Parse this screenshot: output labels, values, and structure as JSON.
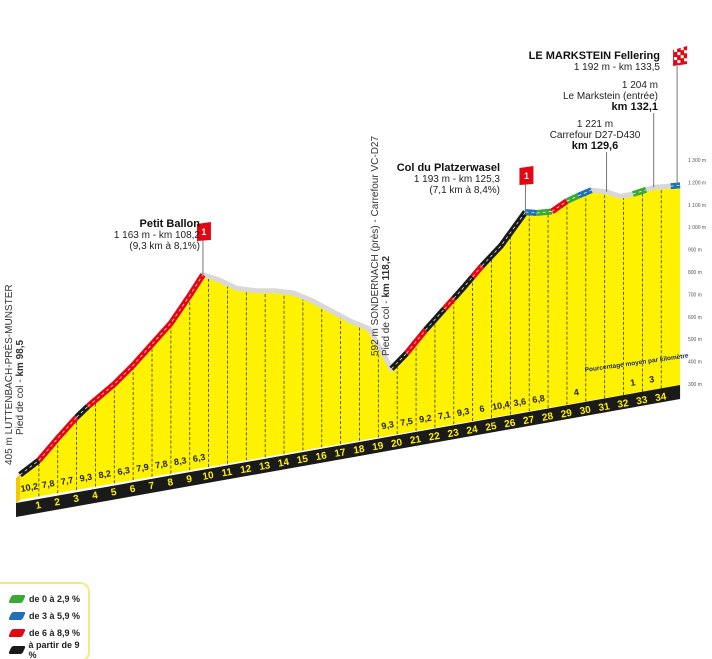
{
  "chart_data": {
    "type": "area",
    "title": "",
    "y_axis_labels": [
      "1 300 m",
      "1 200 m",
      "1 100 m",
      "1 000 m",
      "900 m",
      "800 m",
      "700 m",
      "600 m",
      "500 m",
      "400 m",
      "300 m"
    ],
    "y_axis_values": [
      1300,
      1200,
      1100,
      1000,
      900,
      800,
      700,
      600,
      500,
      400,
      300
    ],
    "km_markers": [
      1,
      2,
      3,
      4,
      5,
      6,
      7,
      8,
      9,
      10,
      11,
      12,
      13,
      14,
      15,
      16,
      17,
      18,
      19,
      20,
      21,
      22,
      23,
      24,
      25,
      26,
      27,
      28,
      29,
      30,
      31,
      32,
      33,
      34
    ],
    "profile": [
      [
        0,
        405
      ],
      [
        1,
        455
      ],
      [
        2,
        540
      ],
      [
        3,
        620
      ],
      [
        3.6,
        660
      ],
      [
        4.3,
        700
      ],
      [
        5,
        740
      ],
      [
        6,
        810
      ],
      [
        7,
        890
      ],
      [
        8,
        970
      ],
      [
        9,
        1080
      ],
      [
        9.7,
        1163
      ],
      [
        10.5,
        1130
      ],
      [
        11.5,
        1075
      ],
      [
        12.5,
        1050
      ],
      [
        13.5,
        1035
      ],
      [
        14.5,
        1010
      ],
      [
        15.5,
        960
      ],
      [
        16.5,
        900
      ],
      [
        17.5,
        840
      ],
      [
        18.5,
        790
      ],
      [
        19.7,
        592
      ],
      [
        20.5,
        650
      ],
      [
        21.5,
        740
      ],
      [
        22.5,
        820
      ],
      [
        23.5,
        900
      ],
      [
        24.5,
        985
      ],
      [
        25.5,
        1060
      ],
      [
        26.8,
        1193
      ],
      [
        27.4,
        1180
      ],
      [
        28.2,
        1175
      ],
      [
        29,
        1210
      ],
      [
        29.6,
        1225
      ],
      [
        30.3,
        1240
      ],
      [
        31.1,
        1221
      ],
      [
        31.8,
        1190
      ],
      [
        32.5,
        1190
      ],
      [
        33.6,
        1204
      ],
      [
        35,
        1192
      ]
    ],
    "segments": [
      {
        "from": 0,
        "to": 1,
        "color": "black"
      },
      {
        "from": 1,
        "to": 3,
        "color": "red"
      },
      {
        "from": 3,
        "to": 3.6,
        "color": "black"
      },
      {
        "from": 3.6,
        "to": 9.7,
        "color": "red"
      },
      {
        "from": 19.7,
        "to": 20.5,
        "color": "black"
      },
      {
        "from": 20.5,
        "to": 21.5,
        "color": "red"
      },
      {
        "from": 21.5,
        "to": 22.5,
        "color": "black"
      },
      {
        "from": 22.5,
        "to": 23,
        "color": "red"
      },
      {
        "from": 23,
        "to": 24,
        "color": "black"
      },
      {
        "from": 24,
        "to": 24.5,
        "color": "red"
      },
      {
        "from": 24.5,
        "to": 26.8,
        "color": "black"
      },
      {
        "from": 26.8,
        "to": 27.4,
        "color": "blue"
      },
      {
        "from": 27.4,
        "to": 28.2,
        "color": "green"
      },
      {
        "from": 28.2,
        "to": 29,
        "color": "red"
      },
      {
        "from": 29,
        "to": 29.6,
        "color": "green"
      },
      {
        "from": 29.6,
        "to": 30.3,
        "color": "blue"
      },
      {
        "from": 32.5,
        "to": 33.2,
        "color": "green"
      },
      {
        "from": 34.5,
        "to": 35,
        "color": "blue"
      }
    ],
    "km_gradients": [
      "10,2",
      "7,8",
      "7,7",
      "9,3",
      "8,2",
      "6,3",
      "7,9",
      "7,8",
      "8,3",
      "6,3",
      "",
      "",
      "",
      "",
      "",
      "",
      "",
      "",
      "",
      "9,3",
      "7,5",
      "9,2",
      "7,1",
      "9,3",
      "6",
      "10,4",
      "3,6",
      "6,8",
      "",
      "4",
      "",
      "",
      "1",
      "3"
    ],
    "annotation": "Pourcentage moyen par kilomètre",
    "colors": {
      "yellow": "#fff200",
      "black": "#1a1a1a",
      "red": "#e30613",
      "blue": "#1d71b8",
      "green": "#3aaa35",
      "flag": "#e30613"
    }
  },
  "places": {
    "start": {
      "line1": "405 m LUTTENBACH-PRÈS-MUNSTER",
      "line2a": "Pied de col - ",
      "line2b": "km 98,5"
    },
    "petit_ballon": {
      "name": "Petit Ballon",
      "info": "1 163 m - km 108,2",
      "detail": "(9,3 km à 8,1%)",
      "category": "1"
    },
    "sondernach": {
      "line1": "592 m SONDERNACH (près) - Carrefour VC-D27",
      "line2a": "Pied de col - ",
      "line2b": "km 118,2"
    },
    "platzerwasel": {
      "name": "Col du Platzerwasel",
      "info": "1 193 m - km 125,3",
      "detail": "(7,1 km à 8,4%)",
      "category": "1"
    },
    "carrefour": {
      "alt": "1 221 m",
      "name": "Carrefour D27-D430",
      "km": "km 129,6"
    },
    "markstein_entree": {
      "alt": "1 204 m",
      "name": "Le Markstein (entrée)",
      "km": "km 132,1"
    },
    "finish": {
      "name": "LE MARKSTEIN Fellering",
      "info": "1 192 m - km 133,5"
    }
  },
  "legend": [
    {
      "label": "de 0 à 2,9 %",
      "color": "#3aaa35"
    },
    {
      "label": "de 3 à 5,9 %",
      "color": "#1d71b8"
    },
    {
      "label": "de 6 à 8,9 %",
      "color": "#e30613"
    },
    {
      "label": "à partir de 9 %",
      "color": "#1a1a1a"
    }
  ]
}
